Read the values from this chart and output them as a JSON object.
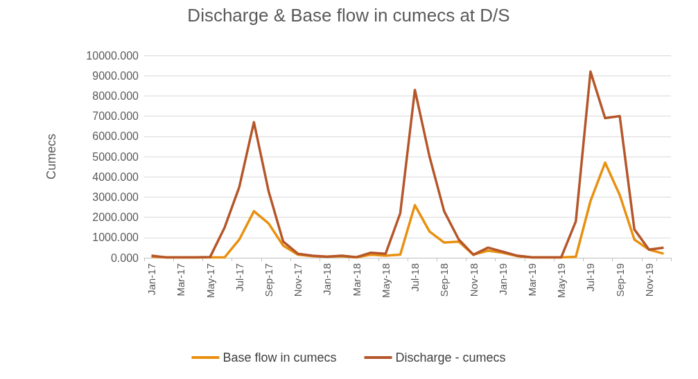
{
  "chart_data": {
    "type": "line",
    "title": "Discharge & Base flow in cumecs at D/S",
    "ylabel": "Cumecs",
    "categories": [
      "Jan-17",
      null,
      "Mar-17",
      null,
      "May-17",
      null,
      "Jul-17",
      null,
      "Sep-17",
      null,
      "Nov-17",
      null,
      "Jan-18",
      null,
      "Mar-18",
      null,
      "May-18",
      null,
      "Jul-18",
      null,
      "Sep-18",
      null,
      "Nov-18",
      null,
      "Jan-19",
      null,
      "Mar-19",
      null,
      "May-19",
      null,
      "Jul-19",
      null,
      "Sep-19",
      null,
      "Nov-19",
      null
    ],
    "series": [
      {
        "name": "Base flow in cumecs",
        "color": "#e8900f",
        "values": [
          50,
          20,
          20,
          20,
          20,
          20,
          900,
          2300,
          1700,
          600,
          150,
          80,
          50,
          80,
          20,
          150,
          100,
          150,
          2600,
          1300,
          750,
          800,
          150,
          350,
          250,
          80,
          20,
          20,
          20,
          50,
          2800,
          4700,
          3100,
          900,
          400,
          200
        ]
      },
      {
        "name": "Discharge - cumecs",
        "color": "#b5562a",
        "values": [
          100,
          20,
          20,
          20,
          30,
          1500,
          3500,
          6700,
          3300,
          800,
          200,
          100,
          50,
          100,
          30,
          250,
          200,
          2200,
          8300,
          5000,
          2300,
          900,
          150,
          500,
          300,
          100,
          20,
          20,
          20,
          1800,
          9200,
          6900,
          7000,
          1400,
          400,
          500
        ]
      }
    ],
    "ylim": [
      0,
      10000
    ],
    "yticks": [
      {
        "value": 0,
        "label": "0.000"
      },
      {
        "value": 1000,
        "label": "1000.000"
      },
      {
        "value": 2000,
        "label": "2000.000"
      },
      {
        "value": 3000,
        "label": "3000.000"
      },
      {
        "value": 4000,
        "label": "4000.000"
      },
      {
        "value": 5000,
        "label": "5000.000"
      },
      {
        "value": 6000,
        "label": "6000.000"
      },
      {
        "value": 7000,
        "label": "7000.000"
      },
      {
        "value": 8000,
        "label": "8000.000"
      },
      {
        "value": 9000,
        "label": "9000.000"
      },
      {
        "value": 10000,
        "label": "10000.000"
      }
    ],
    "grid": "y",
    "legend": "bottom",
    "marker": "none",
    "line_style": "solid"
  }
}
